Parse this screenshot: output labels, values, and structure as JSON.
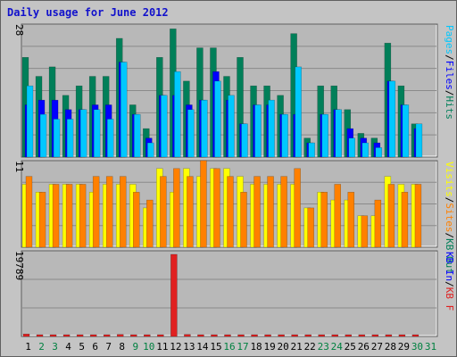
{
  "title": "Daily usage for June 2012",
  "colors": {
    "hits": "#007f59",
    "files": "#0000ff",
    "pages": "#00c8ff",
    "visits": "#ffff00",
    "sites": "#ff8000",
    "kbytes": "#e02020",
    "panel_bg": "#b8b8b8",
    "weekday": "#000000",
    "weekend": "#008040"
  },
  "legends": {
    "top": [
      "Pages",
      "/",
      "Files",
      "/",
      "Hits"
    ],
    "middle": [
      "Visits",
      "/",
      "Sites",
      "/",
      "KB Out"
    ],
    "bottom": [
      "KB In",
      "/",
      "KB F",
      ""
    ]
  },
  "chart_data": {
    "type": "bar",
    "title": "Daily usage for June 2012",
    "x": [
      "1",
      "2",
      "3",
      "4",
      "5",
      "6",
      "7",
      "8",
      "9",
      "10",
      "11",
      "12",
      "13",
      "14",
      "15",
      "16",
      "17",
      "18",
      "19",
      "20",
      "21",
      "22",
      "23",
      "24",
      "25",
      "26",
      "27",
      "28",
      "29",
      "30",
      "31"
    ],
    "weekend_days": [
      "2",
      "3",
      "9",
      "10",
      "16",
      "17",
      "23",
      "24",
      "30",
      "31"
    ],
    "panels": [
      {
        "ymax_label": "28",
        "ymax": 28,
        "series": [
          {
            "name": "Hits",
            "values": [
              21,
              17,
              19,
              13,
              15,
              17,
              17,
              25,
              11,
              6,
              21,
              27,
              16,
              23,
              23,
              17,
              21,
              15,
              15,
              13,
              26,
              4,
              15,
              15,
              10,
              5,
              4,
              24,
              15,
              7,
              0
            ]
          },
          {
            "name": "Files",
            "values": [
              11,
              12,
              12,
              10,
              10,
              11,
              11,
              20,
              9,
              4,
              13,
              13,
              11,
              12,
              18,
              12,
              7,
              11,
              11,
              9,
              9,
              3,
              9,
              10,
              6,
              4,
              3,
              16,
              11,
              6,
              0
            ]
          },
          {
            "name": "Pages",
            "values": [
              15,
              9,
              8,
              8,
              10,
              10,
              8,
              20,
              9,
              3,
              13,
              18,
              10,
              12,
              16,
              13,
              7,
              11,
              12,
              9,
              19,
              3,
              9,
              10,
              4,
              3,
              2,
              16,
              11,
              7,
              0
            ]
          }
        ]
      },
      {
        "ymax_label": "11",
        "ymax": 11,
        "series": [
          {
            "name": "Visits",
            "values": [
              8,
              7,
              8,
              8,
              8,
              7,
              8,
              8,
              8,
              5,
              10,
              7,
              10,
              9,
              10,
              10,
              9,
              8,
              8,
              8,
              8,
              5,
              7,
              6,
              6,
              4,
              4,
              9,
              8,
              8,
              0
            ]
          },
          {
            "name": "Sites",
            "values": [
              9,
              7,
              8,
              8,
              8,
              9,
              9,
              9,
              7,
              6,
              9,
              10,
              9,
              11,
              10,
              9,
              7,
              9,
              9,
              9,
              10,
              5,
              7,
              8,
              7,
              4,
              6,
              8,
              7,
              8,
              0
            ]
          },
          {
            "name": "KBytes",
            "values": [
              9,
              7,
              8,
              8,
              9,
              10,
              9,
              10,
              7,
              6,
              9,
              10,
              9,
              11,
              10,
              9,
              7,
              9,
              9,
              9,
              10,
              5,
              7,
              8,
              7,
              4,
              6,
              8,
              7,
              8,
              0
            ]
          }
        ]
      },
      {
        "ymax_label": "19789",
        "ymax": 19789,
        "series": [
          {
            "name": "KBytes",
            "values": [
              600,
              250,
              250,
              250,
              330,
              250,
              250,
              490,
              250,
              250,
              250,
              19789,
              490,
              330,
              330,
              330,
              330,
              250,
              250,
              250,
              250,
              250,
              250,
              330,
              250,
              250,
              250,
              250,
              250,
              250,
              0
            ]
          }
        ]
      }
    ]
  }
}
